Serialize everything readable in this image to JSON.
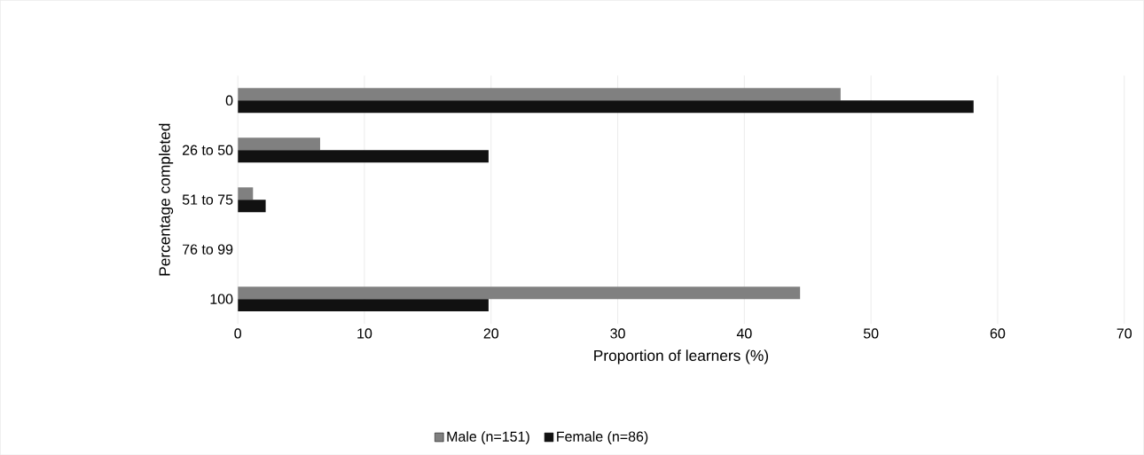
{
  "chart_data": {
    "type": "bar",
    "orientation": "horizontal",
    "xlabel": "Proportion of learners (%)",
    "ylabel": "Percentage completed",
    "categories": [
      "0",
      "26 to 50",
      "51 to 75",
      "76 to 99",
      "100"
    ],
    "series": [
      {
        "name": "Male (n=151)",
        "color": "#808080",
        "values": [
          47.6,
          6.5,
          1.2,
          0,
          44.4
        ]
      },
      {
        "name": "Female (n=86)",
        "color": "#111111",
        "values": [
          58.1,
          19.8,
          2.2,
          0,
          19.8
        ]
      }
    ],
    "xlim": [
      0,
      70
    ],
    "xticks": [
      0,
      10,
      20,
      30,
      40,
      50,
      60,
      70
    ],
    "grid": "x",
    "legend": "bottom"
  }
}
